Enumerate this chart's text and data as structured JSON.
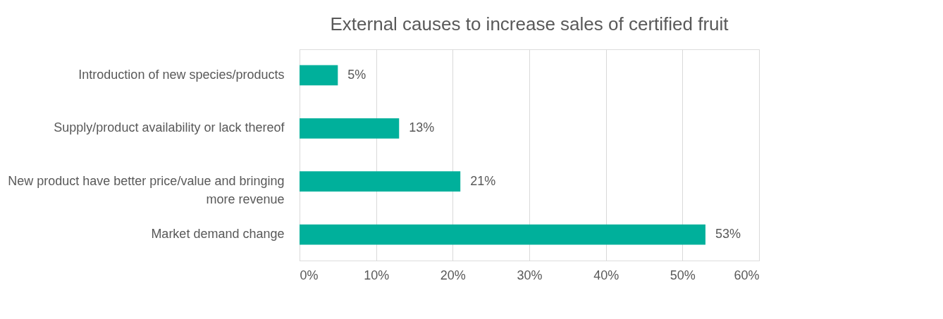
{
  "chart_data": {
    "type": "bar",
    "orientation": "horizontal",
    "title": "External causes to increase sales of certified fruit",
    "categories": [
      "Introduction of new species/products",
      "Supply/product availability or lack thereof",
      "New product have better price/value and bringing more revenue",
      "Market demand change"
    ],
    "series": [
      {
        "color": "#00b09b",
        "values": [
          5,
          13,
          21,
          53
        ],
        "value_labels": [
          "5%",
          "13%",
          "21%",
          "53%"
        ]
      }
    ],
    "xlim": [
      0,
      60
    ],
    "xticks": [
      {
        "value": 0,
        "label": "0%"
      },
      {
        "value": 10,
        "label": "10%"
      },
      {
        "value": 20,
        "label": "20%"
      },
      {
        "value": 30,
        "label": "30%"
      },
      {
        "value": 40,
        "label": "40%"
      },
      {
        "value": 50,
        "label": "50%"
      },
      {
        "value": 60,
        "label": "60%"
      }
    ],
    "grid": "x"
  }
}
